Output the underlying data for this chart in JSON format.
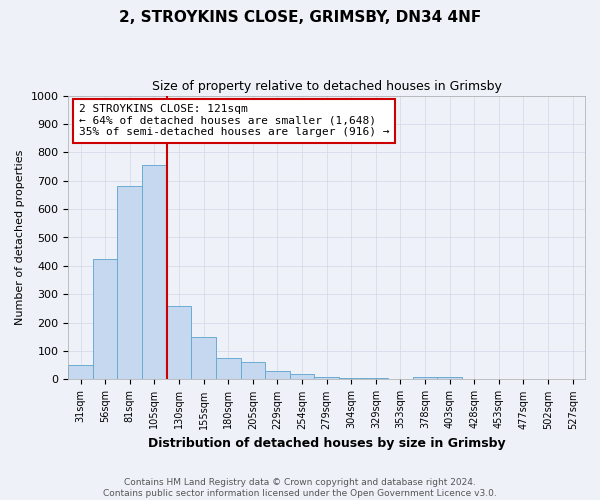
{
  "title": "2, STROYKINS CLOSE, GRIMSBY, DN34 4NF",
  "subtitle": "Size of property relative to detached houses in Grimsby",
  "xlabel": "Distribution of detached houses by size in Grimsby",
  "ylabel": "Number of detached properties",
  "bar_labels": [
    "31sqm",
    "56sqm",
    "81sqm",
    "105sqm",
    "130sqm",
    "155sqm",
    "180sqm",
    "205sqm",
    "229sqm",
    "254sqm",
    "279sqm",
    "304sqm",
    "329sqm",
    "353sqm",
    "378sqm",
    "403sqm",
    "428sqm",
    "453sqm",
    "477sqm",
    "502sqm",
    "527sqm"
  ],
  "bar_values": [
    50,
    425,
    680,
    755,
    260,
    150,
    75,
    60,
    30,
    18,
    10,
    5,
    5,
    0,
    8,
    8,
    0,
    0,
    0,
    0,
    0
  ],
  "bar_color": "#c5d8f0",
  "bar_edge_color": "#6aabd2",
  "vline_x_idx": 3.5,
  "vline_color": "#cc0000",
  "ylim": [
    0,
    1000
  ],
  "yticks": [
    0,
    100,
    200,
    300,
    400,
    500,
    600,
    700,
    800,
    900,
    1000
  ],
  "annotation_text": "2 STROYKINS CLOSE: 121sqm\n← 64% of detached houses are smaller (1,648)\n35% of semi-detached houses are larger (916) →",
  "annotation_box_facecolor": "#ffffff",
  "annotation_box_edgecolor": "#cc0000",
  "footer": "Contains HM Land Registry data © Crown copyright and database right 2024.\nContains public sector information licensed under the Open Government Licence v3.0.",
  "grid_color": "#d0d8e8",
  "background_color": "#eef2f8",
  "title_fontsize": 11,
  "subtitle_fontsize": 9,
  "xlabel_fontsize": 9,
  "ylabel_fontsize": 8,
  "tick_fontsize": 8,
  "xtick_fontsize": 7,
  "footer_fontsize": 6.5,
  "ann_fontsize": 8
}
